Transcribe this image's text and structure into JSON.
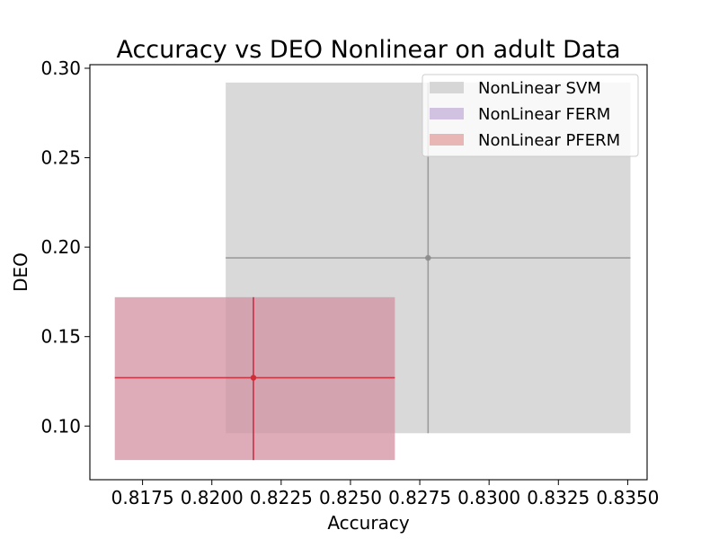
{
  "chart_data": {
    "type": "scatter",
    "title": "Accuracy vs DEO Nonlinear on adult Data",
    "xlabel": "Accuracy",
    "ylabel": "DEO",
    "xlim": [
      0.8156,
      0.8357
    ],
    "ylim": [
      0.07,
      0.302
    ],
    "xticks": [
      0.8175,
      0.82,
      0.8225,
      0.825,
      0.8275,
      0.83,
      0.8325,
      0.835
    ],
    "xtick_labels": [
      "0.8175",
      "0.8200",
      "0.8225",
      "0.8250",
      "0.8275",
      "0.8300",
      "0.8325",
      "0.8350"
    ],
    "yticks": [
      0.1,
      0.15,
      0.2,
      0.25,
      0.3
    ],
    "ytick_labels": [
      "0.10",
      "0.15",
      "0.20",
      "0.25",
      "0.30"
    ],
    "grid": false,
    "legend_position": "top-right",
    "series": [
      {
        "name": "NonLinear SVM",
        "x": 0.8278,
        "y": 0.194,
        "x_range": [
          0.8205,
          0.8351
        ],
        "y_range": [
          0.096,
          0.292
        ],
        "fill_color": "#bfbfbf",
        "line_color": "#8c8c8c"
      },
      {
        "name": "NonLinear FERM",
        "x": 0.8215,
        "y": 0.127,
        "x_range": [
          0.8165,
          0.8266
        ],
        "y_range": [
          0.081,
          0.172
        ],
        "fill_color": "#b99fd4",
        "line_color": "#9467bd"
      },
      {
        "name": "NonLinear PFERM",
        "x": 0.8215,
        "y": 0.127,
        "x_range": [
          0.8165,
          0.8266
        ],
        "y_range": [
          0.081,
          0.172
        ],
        "fill_color": "#e08a8a",
        "line_color": "#d62728"
      }
    ]
  }
}
